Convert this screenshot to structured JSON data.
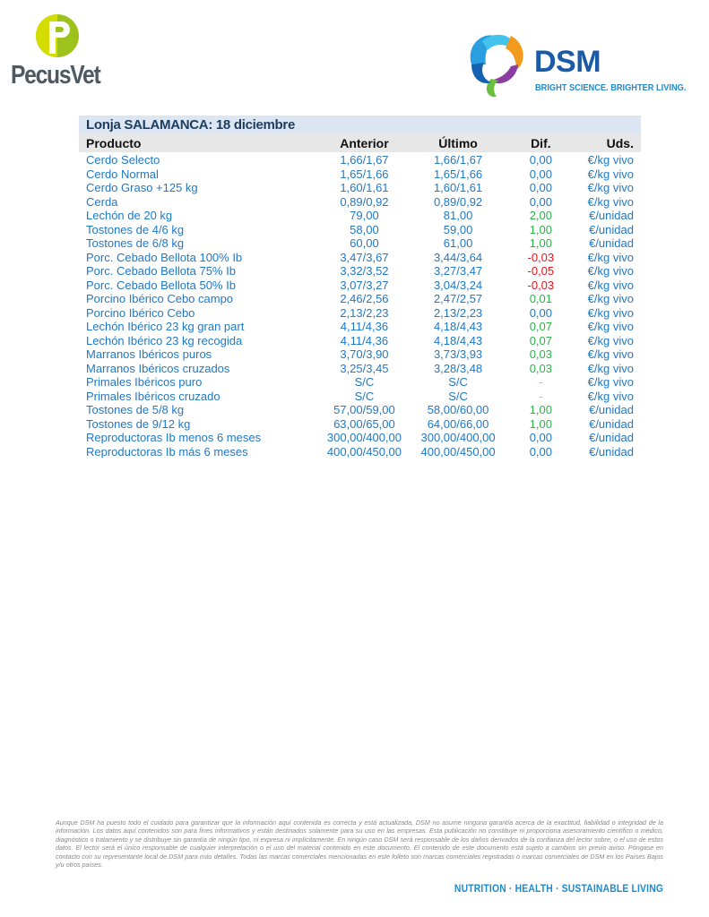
{
  "header": {
    "pecusvet_logo": "PecusVet",
    "dsm_logo": "DSM",
    "dsm_tagline": "BRIGHT SCIENCE. BRIGHTER LIVING."
  },
  "table": {
    "title": "Lonja SALAMANCA: 18 diciembre",
    "columns": [
      "Producto",
      "Anterior",
      "Último",
      "Dif.",
      "Uds."
    ],
    "rows": [
      {
        "producto": "Cerdo Selecto",
        "anterior": "1,66/1,67",
        "ultimo": "1,66/1,67",
        "dif": "0,00",
        "uds": "€/kg vivo",
        "trend": "neutral"
      },
      {
        "producto": "Cerdo Normal",
        "anterior": "1,65/1,66",
        "ultimo": "1,65/1,66",
        "dif": "0,00",
        "uds": "€/kg vivo",
        "trend": "neutral"
      },
      {
        "producto": "Cerdo Graso +125 kg",
        "anterior": "1,60/1,61",
        "ultimo": "1,60/1,61",
        "dif": "0,00",
        "uds": "€/kg vivo",
        "trend": "neutral"
      },
      {
        "producto": "Cerda",
        "anterior": "0,89/0,92",
        "ultimo": "0,89/0,92",
        "dif": "0,00",
        "uds": "€/kg vivo",
        "trend": "neutral"
      },
      {
        "producto": "Lechón de 20 kg",
        "anterior": "79,00",
        "ultimo": "81,00",
        "dif": "2,00",
        "uds": "€/unidad",
        "trend": "up"
      },
      {
        "producto": "Tostones de 4/6 kg",
        "anterior": "58,00",
        "ultimo": "59,00",
        "dif": "1,00",
        "uds": "€/unidad",
        "trend": "up"
      },
      {
        "producto": "Tostones de 6/8 kg",
        "anterior": "60,00",
        "ultimo": "61,00",
        "dif": "1,00",
        "uds": "€/unidad",
        "trend": "up"
      },
      {
        "producto": "Porc. Cebado Bellota 100% Ib",
        "anterior": "3,47/3,67",
        "ultimo": "3,44/3,64",
        "dif": "-0,03",
        "uds": "€/kg vivo",
        "trend": "down"
      },
      {
        "producto": "Porc. Cebado Bellota 75% Ib",
        "anterior": "3,32/3,52",
        "ultimo": "3,27/3,47",
        "dif": "-0,05",
        "uds": "€/kg vivo",
        "trend": "down"
      },
      {
        "producto": "Porc. Cebado Bellota 50% Ib",
        "anterior": "3,07/3,27",
        "ultimo": "3,04/3,24",
        "dif": "-0,03",
        "uds": "€/kg vivo",
        "trend": "down"
      },
      {
        "producto": "Porcino Ibérico Cebo campo",
        "anterior": "2,46/2,56",
        "ultimo": "2,47/2,57",
        "dif": "0,01",
        "uds": "€/kg vivo",
        "trend": "up"
      },
      {
        "producto": "Porcino Ibérico Cebo",
        "anterior": "2,13/2,23",
        "ultimo": "2,13/2,23",
        "dif": "0,00",
        "uds": "€/kg vivo",
        "trend": "neutral"
      },
      {
        "producto": "Lechón Ibérico 23 kg gran part",
        "anterior": "4,11/4,36",
        "ultimo": "4,18/4,43",
        "dif": "0,07",
        "uds": "€/kg vivo",
        "trend": "up"
      },
      {
        "producto": "Lechón Ibérico 23 kg recogida",
        "anterior": "4,11/4,36",
        "ultimo": "4,18/4,43",
        "dif": "0,07",
        "uds": "€/kg vivo",
        "trend": "up"
      },
      {
        "producto": "Marranos Ibéricos puros",
        "anterior": "3,70/3,90",
        "ultimo": "3,73/3,93",
        "dif": "0,03",
        "uds": "€/kg vivo",
        "trend": "up"
      },
      {
        "producto": "Marranos Ibéricos cruzados",
        "anterior": "3,25/3,45",
        "ultimo": "3,28/3,48",
        "dif": "0,03",
        "uds": "€/kg vivo",
        "trend": "up"
      },
      {
        "producto": "Primales Ibéricos puro",
        "anterior": "S/C",
        "ultimo": "S/C",
        "dif": "-",
        "uds": "€/kg vivo",
        "trend": "none"
      },
      {
        "producto": "Primales Ibéricos cruzado",
        "anterior": "S/C",
        "ultimo": "S/C",
        "dif": "-",
        "uds": "€/kg vivo",
        "trend": "none"
      },
      {
        "producto": "Tostones de 5/8 kg",
        "anterior": "57,00/59,00",
        "ultimo": "58,00/60,00",
        "dif": "1,00",
        "uds": "€/unidad",
        "trend": "up"
      },
      {
        "producto": "Tostones de 9/12 kg",
        "anterior": "63,00/65,00",
        "ultimo": "64,00/66,00",
        "dif": "1,00",
        "uds": "€/unidad",
        "trend": "up"
      },
      {
        "producto": "Reproductoras Ib menos 6 meses",
        "anterior": "300,00/400,00",
        "ultimo": "300,00/400,00",
        "dif": "0,00",
        "uds": "€/unidad",
        "trend": "neutral"
      },
      {
        "producto": "Reproductoras Ib más 6 meses",
        "anterior": "400,00/450,00",
        "ultimo": "400,00/450,00",
        "dif": "0,00",
        "uds": "€/unidad",
        "trend": "neutral"
      }
    ]
  },
  "colors": {
    "text_blue": "#1f78c8",
    "up": "#2bb34a",
    "down": "#e8141c",
    "title_bg": "#dce6f2",
    "header_bg": "#e7e7e7"
  },
  "footer": {
    "disclaimer": "Aunque DSM ha puesto todo el cuidado para garantizar que la información aquí contenida es correcta y está actualizada, DSM no asume ninguna garantía acerca de la exactitud, fiabilidad o integridad de la información. Los datos aquí contenidos son para fines informativos y están destinados solamente para su uso en las empresas. Esta publicación no constituye ni proporciona asesoramiento científico o médico, diagnóstico o tratamiento y se distribuye sin garantía de ningún tipo, ni expresa ni implícitamente. En ningún caso DSM será responsable de los daños derivados de la confianza del lector sobre, o el uso de estos datos. El lector será el único responsable de cualquier interpretación o el uso del material contenido en este documento. El contenido de este documento está sujeto a cambios sin previo aviso. Póngase en contacto con su representante local de DSM para más detalles. Todas las marcas comerciales mencionadas en este folleto son marcas comerciales registradas o marcas comerciales de DSM en los Países Bajos y/u otros países.",
    "tagline": "NUTRITION · HEALTH · SUSTAINABLE LIVING"
  }
}
